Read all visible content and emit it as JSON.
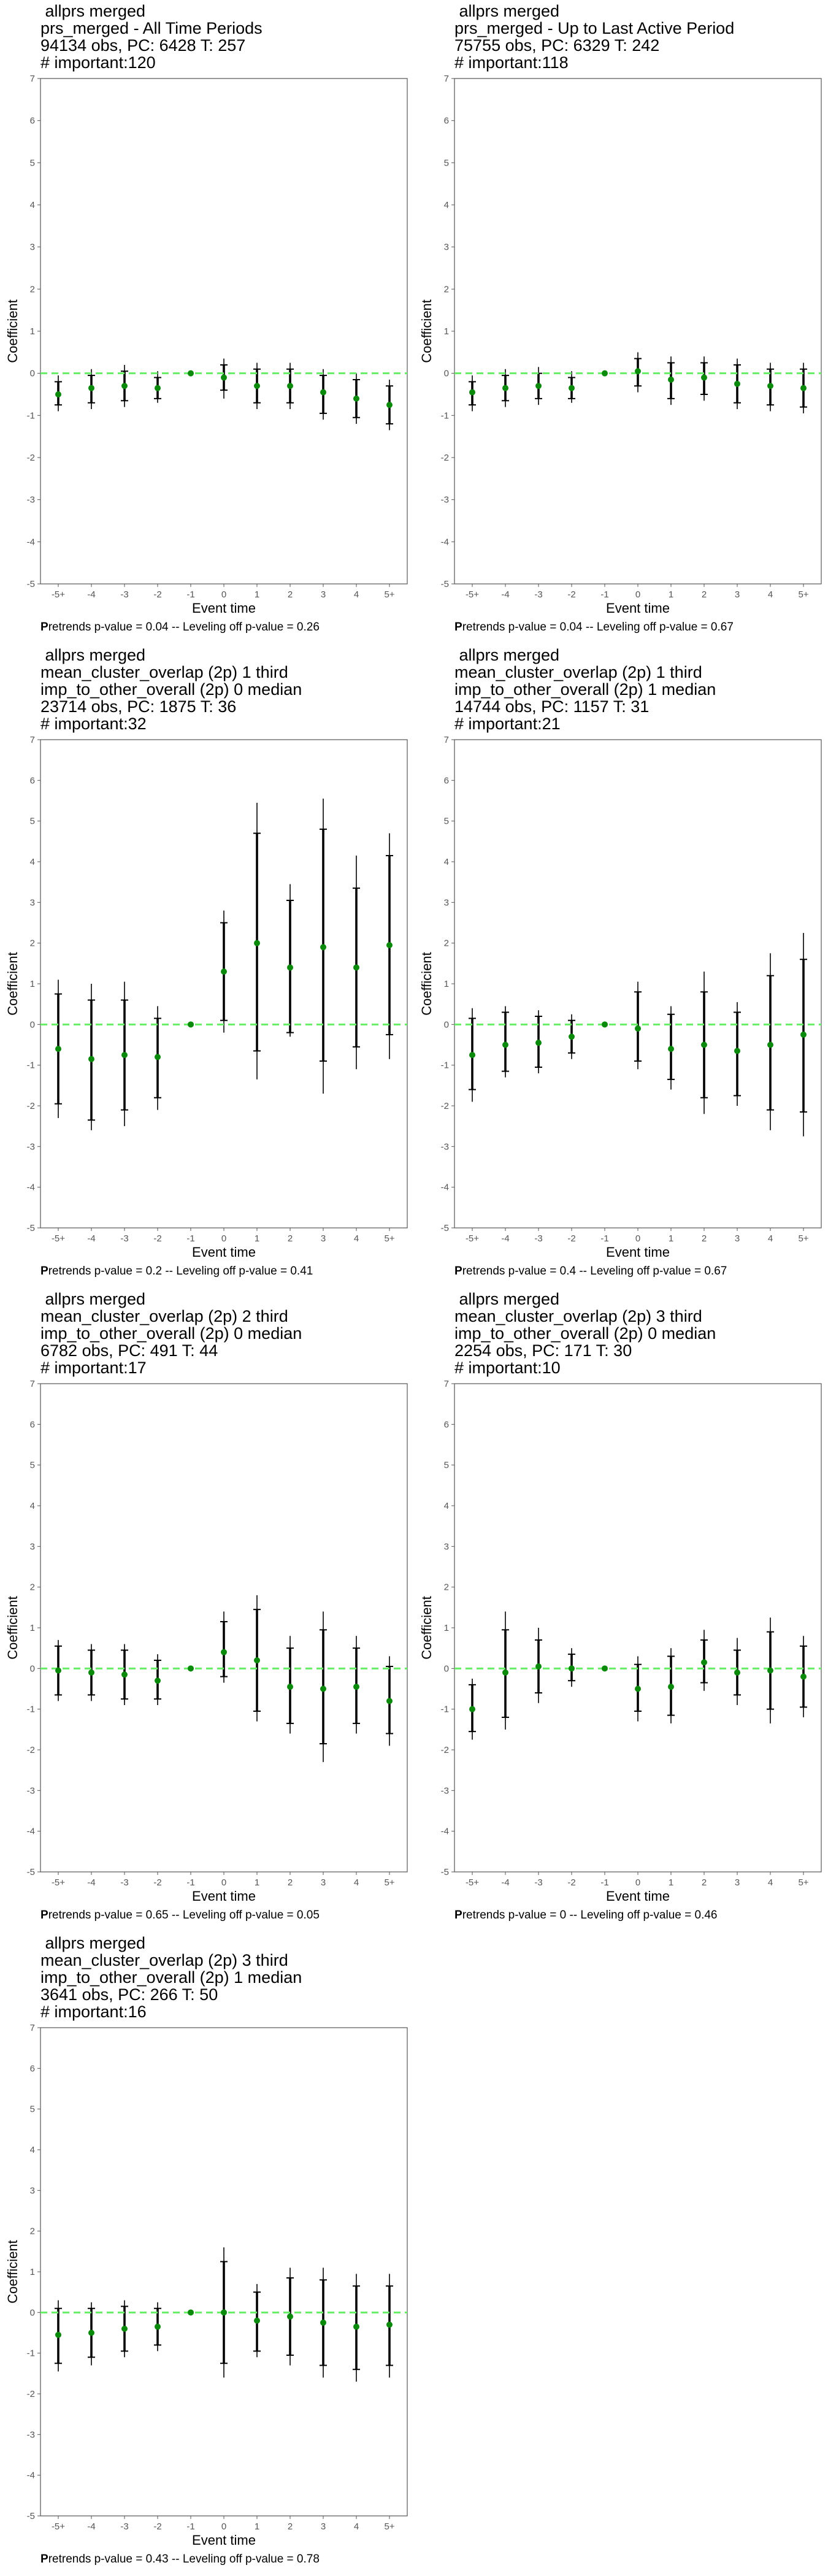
{
  "chart_data": [
    {
      "type": "scatter",
      "title_lines": [
        "allprs merged",
        "prs_merged - All Time Periods",
        "94134 obs, PC: 6428 T: 257",
        "# important:120"
      ],
      "xlabel": "Event time",
      "ylabel": "Coefficient",
      "categories": [
        "-5+",
        "-4",
        "-3",
        "-2",
        "-1",
        "0",
        "1",
        "2",
        "3",
        "4",
        "5+"
      ],
      "yticks": [
        "-5",
        "-4",
        "-3",
        "-2",
        "-1",
        "0",
        "1",
        "2",
        "3",
        "4",
        "5",
        "6",
        "7"
      ],
      "ylim": [
        -5,
        7
      ],
      "series": [
        {
          "values": [
            -0.5,
            -0.35,
            -0.3,
            -0.35,
            0,
            -0.1,
            -0.3,
            -0.3,
            -0.45,
            -0.6,
            -0.75
          ],
          "ci_outer": [
            [
              -0.9,
              -0.05
            ],
            [
              -0.85,
              0.1
            ],
            [
              -0.8,
              0.2
            ],
            [
              -0.7,
              0.05
            ],
            null,
            [
              -0.6,
              0.35
            ],
            [
              -0.85,
              0.25
            ],
            [
              -0.85,
              0.25
            ],
            [
              -1.1,
              0.1
            ],
            [
              -1.2,
              0.0
            ],
            [
              -1.35,
              -0.15
            ]
          ],
          "ci_inner": [
            [
              -0.75,
              -0.2
            ],
            [
              -0.7,
              -0.05
            ],
            [
              -0.65,
              0.05
            ],
            [
              -0.6,
              -0.1
            ],
            null,
            [
              -0.4,
              0.2
            ],
            [
              -0.7,
              0.1
            ],
            [
              -0.7,
              0.1
            ],
            [
              -0.95,
              -0.05
            ],
            [
              -1.05,
              -0.15
            ],
            [
              -1.2,
              -0.3
            ]
          ]
        }
      ],
      "reference_line": 0,
      "caption": {
        "p_letter": "P",
        "text": "retrends p-value = 0.04 -- Leveling off p-value = 0.26"
      }
    },
    {
      "type": "scatter",
      "title_lines": [
        "allprs merged",
        "prs_merged - Up to Last Active Period",
        "75755 obs, PC: 6329 T: 242",
        "# important:118"
      ],
      "xlabel": "Event time",
      "ylabel": "Coefficient",
      "categories": [
        "-5+",
        "-4",
        "-3",
        "-2",
        "-1",
        "0",
        "1",
        "2",
        "3",
        "4",
        "5+"
      ],
      "yticks": [
        "-5",
        "-4",
        "-3",
        "-2",
        "-1",
        "0",
        "1",
        "2",
        "3",
        "4",
        "5",
        "6",
        "7"
      ],
      "ylim": [
        -5,
        7
      ],
      "series": [
        {
          "values": [
            -0.45,
            -0.35,
            -0.3,
            -0.35,
            0,
            0.05,
            -0.15,
            -0.1,
            -0.25,
            -0.3,
            -0.35
          ],
          "ci_outer": [
            [
              -0.9,
              -0.05
            ],
            [
              -0.8,
              0.1
            ],
            [
              -0.75,
              0.15
            ],
            [
              -0.7,
              0.05
            ],
            null,
            [
              -0.45,
              0.5
            ],
            [
              -0.75,
              0.4
            ],
            [
              -0.65,
              0.4
            ],
            [
              -0.85,
              0.35
            ],
            [
              -0.9,
              0.25
            ],
            [
              -0.95,
              0.25
            ]
          ],
          "ci_inner": [
            [
              -0.75,
              -0.2
            ],
            [
              -0.65,
              -0.05
            ],
            [
              -0.6,
              0.0
            ],
            [
              -0.6,
              -0.1
            ],
            null,
            [
              -0.3,
              0.35
            ],
            [
              -0.6,
              0.25
            ],
            [
              -0.5,
              0.25
            ],
            [
              -0.7,
              0.2
            ],
            [
              -0.75,
              0.1
            ],
            [
              -0.8,
              0.1
            ]
          ]
        }
      ],
      "reference_line": 0,
      "caption": {
        "p_letter": "P",
        "text": "retrends p-value = 0.04 -- Leveling off p-value = 0.67"
      }
    },
    {
      "type": "scatter",
      "title_lines": [
        "allprs merged",
        "mean_cluster_overlap (2p) 1 third",
        "imp_to_other_overall (2p) 0 median",
        "23714 obs, PC: 1875 T: 36",
        "# important:32"
      ],
      "xlabel": "Event time",
      "ylabel": "Coefficient",
      "categories": [
        "-5+",
        "-4",
        "-3",
        "-2",
        "-1",
        "0",
        "1",
        "2",
        "3",
        "4",
        "5+"
      ],
      "yticks": [
        "-5",
        "-4",
        "-3",
        "-2",
        "-1",
        "0",
        "1",
        "2",
        "3",
        "4",
        "5",
        "6",
        "7"
      ],
      "ylim": [
        -5,
        7
      ],
      "series": [
        {
          "values": [
            -0.6,
            -0.85,
            -0.75,
            -0.8,
            0,
            1.3,
            2.0,
            1.4,
            1.9,
            1.4,
            1.95
          ],
          "ci_outer": [
            [
              -2.3,
              1.1
            ],
            [
              -2.6,
              1.0
            ],
            [
              -2.5,
              1.05
            ],
            [
              -2.1,
              0.45
            ],
            null,
            [
              -0.2,
              2.8
            ],
            [
              -1.35,
              5.45
            ],
            [
              -0.3,
              3.45
            ],
            [
              -1.7,
              5.55
            ],
            [
              -1.1,
              4.15
            ],
            [
              -0.85,
              4.7
            ]
          ],
          "ci_inner": [
            [
              -1.95,
              0.75
            ],
            [
              -2.35,
              0.6
            ],
            [
              -2.1,
              0.6
            ],
            [
              -1.8,
              0.15
            ],
            null,
            [
              0.1,
              2.5
            ],
            [
              -0.65,
              4.7
            ],
            [
              -0.2,
              3.05
            ],
            [
              -0.9,
              4.8
            ],
            [
              -0.55,
              3.35
            ],
            [
              -0.25,
              4.15
            ]
          ]
        }
      ],
      "reference_line": 0,
      "caption": {
        "p_letter": "P",
        "text": "retrends p-value = 0.2 -- Leveling off p-value = 0.41"
      }
    },
    {
      "type": "scatter",
      "title_lines": [
        "allprs merged",
        "mean_cluster_overlap (2p) 1 third",
        "imp_to_other_overall (2p) 1 median",
        "14744 obs, PC: 1157 T: 31",
        "# important:21"
      ],
      "xlabel": "Event time",
      "ylabel": "Coefficient",
      "categories": [
        "-5+",
        "-4",
        "-3",
        "-2",
        "-1",
        "0",
        "1",
        "2",
        "3",
        "4",
        "5+"
      ],
      "yticks": [
        "-5",
        "-4",
        "-3",
        "-2",
        "-1",
        "0",
        "1",
        "2",
        "3",
        "4",
        "5",
        "6",
        "7"
      ],
      "ylim": [
        -5,
        7
      ],
      "series": [
        {
          "values": [
            -0.75,
            -0.5,
            -0.45,
            -0.3,
            0,
            -0.1,
            -0.6,
            -0.5,
            -0.65,
            -0.5,
            -0.25
          ],
          "ci_outer": [
            [
              -1.9,
              0.4
            ],
            [
              -1.3,
              0.45
            ],
            [
              -1.2,
              0.35
            ],
            [
              -0.85,
              0.25
            ],
            null,
            [
              -1.1,
              1.05
            ],
            [
              -1.6,
              0.45
            ],
            [
              -2.2,
              1.3
            ],
            [
              -2.0,
              0.55
            ],
            [
              -2.6,
              1.75
            ],
            [
              -2.75,
              2.25
            ]
          ],
          "ci_inner": [
            [
              -1.6,
              0.15
            ],
            [
              -1.15,
              0.3
            ],
            [
              -1.05,
              0.2
            ],
            [
              -0.7,
              0.1
            ],
            null,
            [
              -0.9,
              0.8
            ],
            [
              -1.35,
              0.25
            ],
            [
              -1.8,
              0.8
            ],
            [
              -1.75,
              0.3
            ],
            [
              -2.1,
              1.2
            ],
            [
              -2.15,
              1.6
            ]
          ]
        }
      ],
      "reference_line": 0,
      "caption": {
        "p_letter": "P",
        "text": "retrends p-value = 0.4 -- Leveling off p-value = 0.67"
      }
    },
    {
      "type": "scatter",
      "title_lines": [
        "allprs merged",
        "mean_cluster_overlap (2p) 2 third",
        "imp_to_other_overall (2p) 0 median",
        "6782 obs, PC: 491 T: 44",
        "# important:17"
      ],
      "xlabel": "Event time",
      "ylabel": "Coefficient",
      "categories": [
        "-5+",
        "-4",
        "-3",
        "-2",
        "-1",
        "0",
        "1",
        "2",
        "3",
        "4",
        "5+"
      ],
      "yticks": [
        "-5",
        "-4",
        "-3",
        "-2",
        "-1",
        "0",
        "1",
        "2",
        "3",
        "4",
        "5",
        "6",
        "7"
      ],
      "ylim": [
        -5,
        7
      ],
      "series": [
        {
          "values": [
            -0.05,
            -0.1,
            -0.15,
            -0.3,
            0,
            0.4,
            0.2,
            -0.45,
            -0.5,
            -0.45,
            -0.8
          ],
          "ci_outer": [
            [
              -0.8,
              0.7
            ],
            [
              -0.8,
              0.6
            ],
            [
              -0.9,
              0.6
            ],
            [
              -0.9,
              0.35
            ],
            null,
            [
              -0.35,
              1.4
            ],
            [
              -1.3,
              1.8
            ],
            [
              -1.6,
              0.8
            ],
            [
              -2.3,
              1.4
            ],
            [
              -1.6,
              0.8
            ],
            [
              -1.9,
              0.3
            ]
          ],
          "ci_inner": [
            [
              -0.65,
              0.55
            ],
            [
              -0.65,
              0.45
            ],
            [
              -0.75,
              0.45
            ],
            [
              -0.75,
              0.2
            ],
            null,
            [
              -0.2,
              1.15
            ],
            [
              -1.05,
              1.45
            ],
            [
              -1.35,
              0.5
            ],
            [
              -1.85,
              0.95
            ],
            [
              -1.35,
              0.5
            ],
            [
              -1.6,
              0.05
            ]
          ]
        }
      ],
      "reference_line": 0,
      "caption": {
        "p_letter": "P",
        "text": "retrends p-value = 0.65 -- Leveling off p-value = 0.05"
      }
    },
    {
      "type": "scatter",
      "title_lines": [
        "allprs merged",
        "mean_cluster_overlap (2p) 3 third",
        "imp_to_other_overall (2p) 0 median",
        "2254 obs, PC: 171 T: 30",
        "# important:10"
      ],
      "xlabel": "Event time",
      "ylabel": "Coefficient",
      "categories": [
        "-5+",
        "-4",
        "-3",
        "-2",
        "-1",
        "0",
        "1",
        "2",
        "3",
        "4",
        "5+"
      ],
      "yticks": [
        "-5",
        "-4",
        "-3",
        "-2",
        "-1",
        "0",
        "1",
        "2",
        "3",
        "4",
        "5",
        "6",
        "7"
      ],
      "ylim": [
        -5,
        7
      ],
      "series": [
        {
          "values": [
            -1.0,
            -0.1,
            0.05,
            0.0,
            0,
            -0.5,
            -0.45,
            0.15,
            -0.1,
            -0.05,
            -0.2
          ],
          "ci_outer": [
            [
              -1.75,
              -0.25
            ],
            [
              -1.5,
              1.4
            ],
            [
              -0.85,
              1.0
            ],
            [
              -0.45,
              0.5
            ],
            null,
            [
              -1.3,
              0.3
            ],
            [
              -1.35,
              0.5
            ],
            [
              -0.55,
              0.95
            ],
            [
              -0.9,
              0.75
            ],
            [
              -1.35,
              1.25
            ],
            [
              -1.2,
              0.8
            ]
          ],
          "ci_inner": [
            [
              -1.55,
              -0.4
            ],
            [
              -1.2,
              0.95
            ],
            [
              -0.6,
              0.7
            ],
            [
              -0.3,
              0.35
            ],
            null,
            [
              -1.05,
              0.1
            ],
            [
              -1.15,
              0.3
            ],
            [
              -0.35,
              0.7
            ],
            [
              -0.65,
              0.45
            ],
            [
              -1.0,
              0.9
            ],
            [
              -0.95,
              0.55
            ]
          ]
        }
      ],
      "reference_line": 0,
      "caption": {
        "p_letter": "P",
        "text": "retrends p-value = 0 -- Leveling off p-value = 0.46"
      }
    },
    {
      "type": "scatter",
      "title_lines": [
        "allprs merged",
        "mean_cluster_overlap (2p) 3 third",
        "imp_to_other_overall (2p) 1 median",
        "3641 obs, PC: 266 T: 50",
        "# important:16"
      ],
      "xlabel": "Event time",
      "ylabel": "Coefficient",
      "categories": [
        "-5+",
        "-4",
        "-3",
        "-2",
        "-1",
        "0",
        "1",
        "2",
        "3",
        "4",
        "5+"
      ],
      "yticks": [
        "-5",
        "-4",
        "-3",
        "-2",
        "-1",
        "0",
        "1",
        "2",
        "3",
        "4",
        "5",
        "6",
        "7"
      ],
      "ylim": [
        -5,
        7
      ],
      "series": [
        {
          "values": [
            -0.55,
            -0.5,
            -0.4,
            -0.35,
            0,
            0.0,
            -0.2,
            -0.1,
            -0.25,
            -0.35,
            -0.3
          ],
          "ci_outer": [
            [
              -1.45,
              0.3
            ],
            [
              -1.3,
              0.25
            ],
            [
              -1.1,
              0.3
            ],
            [
              -0.95,
              0.25
            ],
            null,
            [
              -1.6,
              1.6
            ],
            [
              -1.1,
              0.7
            ],
            [
              -1.3,
              1.1
            ],
            [
              -1.6,
              1.1
            ],
            [
              -1.7,
              0.95
            ],
            [
              -1.6,
              0.95
            ]
          ],
          "ci_inner": [
            [
              -1.25,
              0.1
            ],
            [
              -1.1,
              0.1
            ],
            [
              -0.95,
              0.15
            ],
            [
              -0.8,
              0.1
            ],
            null,
            [
              -1.25,
              1.25
            ],
            [
              -0.95,
              0.5
            ],
            [
              -1.05,
              0.85
            ],
            [
              -1.3,
              0.8
            ],
            [
              -1.4,
              0.65
            ],
            [
              -1.3,
              0.65
            ]
          ]
        }
      ],
      "reference_line": 0,
      "caption": {
        "p_letter": "P",
        "text": "retrends p-value = 0.43 -- Leveling off p-value = 0.78"
      }
    }
  ],
  "colors": {
    "zero_line": "#66ee66",
    "point": "#0a8a0a",
    "errorbar": "#000000",
    "frame": "#555555",
    "tick_text": "#555555"
  }
}
